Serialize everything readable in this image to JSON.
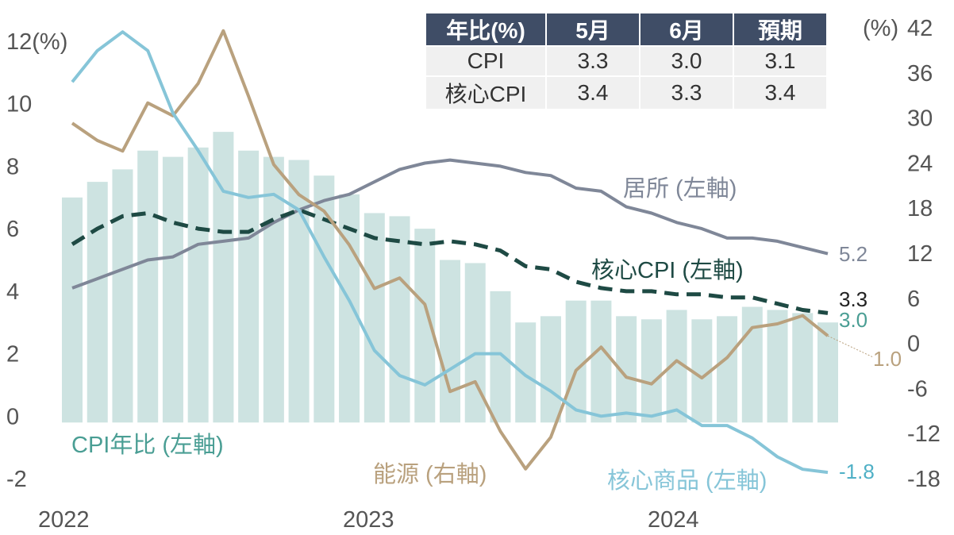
{
  "chart_data": {
    "type": "bar+line",
    "x": [
      "2021-12",
      "2022-01",
      "2022-02",
      "2022-03",
      "2022-04",
      "2022-05",
      "2022-06",
      "2022-07",
      "2022-08",
      "2022-09",
      "2022-10",
      "2022-11",
      "2022-12",
      "2023-01",
      "2023-02",
      "2023-03",
      "2023-04",
      "2023-05",
      "2023-06",
      "2023-07",
      "2023-08",
      "2023-09",
      "2023-10",
      "2023-11",
      "2023-12",
      "2024-01",
      "2024-02",
      "2024-03",
      "2024-04",
      "2024-05",
      "2024-06"
    ],
    "x_tick_labels": [
      "2022",
      "2023",
      "2024"
    ],
    "left_axis": {
      "unit_label": "(%)",
      "ylim": [
        -2,
        12
      ],
      "ticks": [
        12,
        10,
        8,
        6,
        4,
        2,
        0,
        -2
      ]
    },
    "right_axis": {
      "unit_label": "(%)",
      "ylim": [
        -18,
        42
      ],
      "ticks": [
        42,
        36,
        30,
        24,
        18,
        12,
        6,
        0,
        -6,
        -12,
        -18
      ]
    },
    "series": [
      {
        "name": "CPI年比 (左軸)",
        "type": "bar",
        "axis": "left",
        "color": "#cde3e1",
        "label_color": "#4a9e94",
        "end_label": "3.0",
        "values": [
          7.0,
          7.5,
          7.9,
          8.5,
          8.3,
          8.6,
          9.1,
          8.5,
          8.3,
          8.2,
          7.7,
          7.1,
          6.5,
          6.4,
          6.0,
          5.0,
          4.9,
          4.0,
          3.0,
          3.2,
          3.7,
          3.7,
          3.2,
          3.1,
          3.4,
          3.1,
          3.2,
          3.5,
          3.4,
          3.3,
          3.0
        ]
      },
      {
        "name": "居所 (左軸)",
        "type": "line",
        "axis": "left",
        "color": "#7f8798",
        "end_label": "5.2",
        "values": [
          4.1,
          4.4,
          4.7,
          5.0,
          5.1,
          5.5,
          5.6,
          5.7,
          6.2,
          6.6,
          6.9,
          7.1,
          7.5,
          7.9,
          8.1,
          8.2,
          8.1,
          8.0,
          7.8,
          7.7,
          7.3,
          7.2,
          6.7,
          6.5,
          6.2,
          6.0,
          5.7,
          5.7,
          5.6,
          5.4,
          5.2
        ]
      },
      {
        "name": "核心CPI (左軸)",
        "type": "line",
        "dashed": true,
        "axis": "left",
        "color": "#1e4a44",
        "end_label": "3.3",
        "values": [
          5.5,
          6.0,
          6.4,
          6.5,
          6.2,
          6.0,
          5.9,
          5.9,
          6.3,
          6.6,
          6.3,
          6.0,
          5.7,
          5.6,
          5.5,
          5.6,
          5.5,
          5.3,
          4.8,
          4.7,
          4.3,
          4.1,
          4.0,
          4.0,
          3.9,
          3.9,
          3.8,
          3.8,
          3.6,
          3.4,
          3.3
        ]
      },
      {
        "name": "能源 (右軸)",
        "type": "line",
        "axis": "right",
        "color": "#b9a17e",
        "end_label": "1.0",
        "values": [
          29.3,
          27.0,
          25.6,
          32.0,
          30.3,
          34.6,
          41.6,
          32.9,
          23.8,
          19.8,
          17.6,
          13.1,
          7.3,
          8.7,
          5.2,
          -6.4,
          -5.1,
          -11.7,
          -16.7,
          -12.5,
          -3.6,
          -0.5,
          -4.5,
          -5.4,
          -2.3,
          -4.6,
          -1.9,
          2.1,
          2.6,
          3.7,
          1.0
        ]
      },
      {
        "name": "核心商品 (左軸)",
        "type": "line",
        "axis": "left",
        "color": "#86c5d8",
        "end_label": "-1.8",
        "values": [
          10.7,
          11.7,
          12.3,
          11.7,
          9.7,
          8.5,
          7.2,
          7.0,
          7.1,
          6.6,
          5.1,
          3.7,
          2.1,
          1.3,
          1.0,
          1.5,
          2.0,
          2.0,
          1.3,
          0.8,
          0.2,
          0.0,
          0.1,
          0.0,
          0.2,
          -0.3,
          -0.3,
          -0.7,
          -1.3,
          -1.7,
          -1.8
        ]
      }
    ],
    "table": {
      "headers": [
        "年比(%)",
        "5月",
        "6月",
        "預期"
      ],
      "rows": [
        [
          "CPI",
          "3.3",
          "3.0",
          "3.1"
        ],
        [
          "核心CPI",
          "3.4",
          "3.3",
          "3.4"
        ]
      ]
    }
  }
}
